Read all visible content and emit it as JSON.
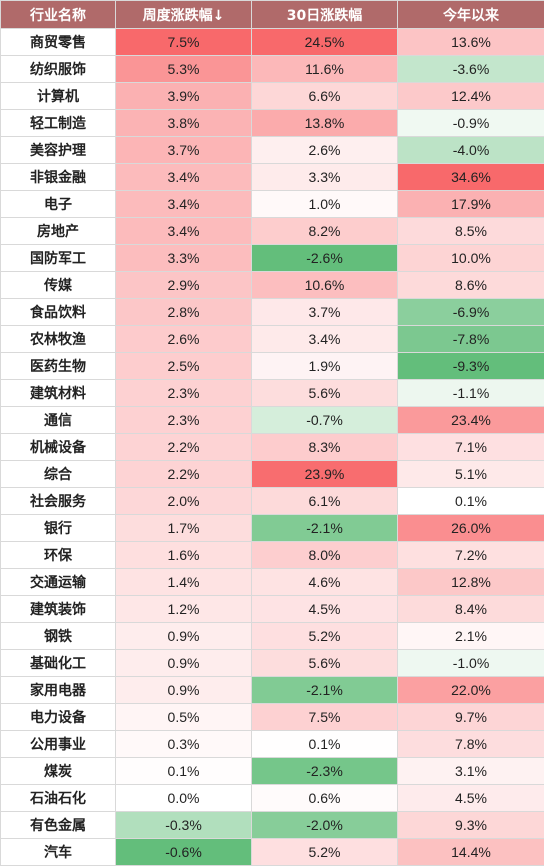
{
  "chart_data": {
    "type": "table",
    "columns": [
      "行业名称",
      "周度涨跌幅↓",
      "30日涨跌幅",
      "今年以来"
    ],
    "rows": [
      {
        "industry": "商贸零售",
        "weekly": "7.5%",
        "d30": "24.5%",
        "ytd": "13.6%"
      },
      {
        "industry": "纺织服饰",
        "weekly": "5.3%",
        "d30": "11.6%",
        "ytd": "-3.6%"
      },
      {
        "industry": "计算机",
        "weekly": "3.9%",
        "d30": "6.6%",
        "ytd": "12.4%"
      },
      {
        "industry": "轻工制造",
        "weekly": "3.8%",
        "d30": "13.8%",
        "ytd": "-0.9%"
      },
      {
        "industry": "美容护理",
        "weekly": "3.7%",
        "d30": "2.6%",
        "ytd": "-4.0%"
      },
      {
        "industry": "非银金融",
        "weekly": "3.4%",
        "d30": "3.3%",
        "ytd": "34.6%"
      },
      {
        "industry": "电子",
        "weekly": "3.4%",
        "d30": "1.0%",
        "ytd": "17.9%"
      },
      {
        "industry": "房地产",
        "weekly": "3.4%",
        "d30": "8.2%",
        "ytd": "8.5%"
      },
      {
        "industry": "国防军工",
        "weekly": "3.3%",
        "d30": "-2.6%",
        "ytd": "10.0%"
      },
      {
        "industry": "传媒",
        "weekly": "2.9%",
        "d30": "10.6%",
        "ytd": "8.6%"
      },
      {
        "industry": "食品饮料",
        "weekly": "2.8%",
        "d30": "3.7%",
        "ytd": "-6.9%"
      },
      {
        "industry": "农林牧渔",
        "weekly": "2.6%",
        "d30": "3.4%",
        "ytd": "-7.8%"
      },
      {
        "industry": "医药生物",
        "weekly": "2.5%",
        "d30": "1.9%",
        "ytd": "-9.3%"
      },
      {
        "industry": "建筑材料",
        "weekly": "2.3%",
        "d30": "5.6%",
        "ytd": "-1.1%"
      },
      {
        "industry": "通信",
        "weekly": "2.3%",
        "d30": "-0.7%",
        "ytd": "23.4%"
      },
      {
        "industry": "机械设备",
        "weekly": "2.2%",
        "d30": "8.3%",
        "ytd": "7.1%"
      },
      {
        "industry": "综合",
        "weekly": "2.2%",
        "d30": "23.9%",
        "ytd": "5.1%"
      },
      {
        "industry": "社会服务",
        "weekly": "2.0%",
        "d30": "6.1%",
        "ytd": "0.1%"
      },
      {
        "industry": "银行",
        "weekly": "1.7%",
        "d30": "-2.1%",
        "ytd": "26.0%"
      },
      {
        "industry": "环保",
        "weekly": "1.6%",
        "d30": "8.0%",
        "ytd": "7.2%"
      },
      {
        "industry": "交通运输",
        "weekly": "1.4%",
        "d30": "4.6%",
        "ytd": "12.8%"
      },
      {
        "industry": "建筑装饰",
        "weekly": "1.2%",
        "d30": "4.5%",
        "ytd": "8.4%"
      },
      {
        "industry": "钢铁",
        "weekly": "0.9%",
        "d30": "5.2%",
        "ytd": "2.1%"
      },
      {
        "industry": "基础化工",
        "weekly": "0.9%",
        "d30": "5.6%",
        "ytd": "-1.0%"
      },
      {
        "industry": "家用电器",
        "weekly": "0.9%",
        "d30": "-2.1%",
        "ytd": "22.0%"
      },
      {
        "industry": "电力设备",
        "weekly": "0.5%",
        "d30": "7.5%",
        "ytd": "9.7%"
      },
      {
        "industry": "公用事业",
        "weekly": "0.3%",
        "d30": "0.1%",
        "ytd": "7.8%"
      },
      {
        "industry": "煤炭",
        "weekly": "0.1%",
        "d30": "-2.3%",
        "ytd": "3.1%"
      },
      {
        "industry": "石油石化",
        "weekly": "0.0%",
        "d30": "0.6%",
        "ytd": "4.5%"
      },
      {
        "industry": "有色金属",
        "weekly": "-0.3%",
        "d30": "-2.0%",
        "ytd": "9.3%"
      },
      {
        "industry": "汽车",
        "weekly": "-0.6%",
        "d30": "5.2%",
        "ytd": "14.4%"
      }
    ],
    "colors": {
      "header_bg": "#b06a6a",
      "positive_max": "#f8696b",
      "negative_max": "#63be7b",
      "neutral": "#ffffff"
    }
  }
}
